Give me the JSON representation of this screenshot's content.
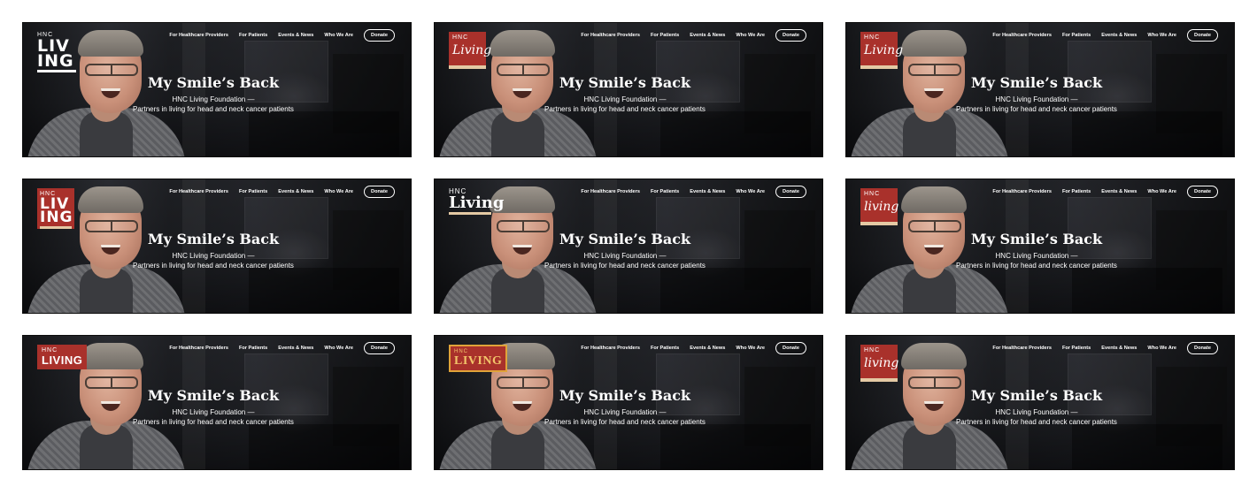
{
  "nav": {
    "links": [
      "For Healthcare Providers",
      "For Patients",
      "Events & News",
      "Who We Are"
    ],
    "donate_label": "Donate"
  },
  "hero": {
    "title": "My Smile’s Back",
    "subtitle_line1": "HNC Living Foundation —",
    "subtitle_line2": "Partners in living for head and neck cancer patients"
  },
  "logos": [
    {
      "variant": "stacked-white",
      "lines": [
        "HNC",
        "LIV",
        "ING"
      ]
    },
    {
      "variant": "script-red",
      "lines": [
        "HNC",
        "Living"
      ]
    },
    {
      "variant": "script-red",
      "lines": [
        "HNC",
        "Living"
      ]
    },
    {
      "variant": "stacked-red",
      "lines": [
        "HNC",
        "LIV",
        "ING"
      ]
    },
    {
      "variant": "serif-line",
      "lines": [
        "HNC",
        "Living"
      ]
    },
    {
      "variant": "script-red",
      "lines": [
        "HNC",
        "living"
      ]
    },
    {
      "variant": "boxed-red",
      "lines": [
        "HNC",
        "LIVING"
      ]
    },
    {
      "variant": "boxed-gold",
      "lines": [
        "HNC",
        "LIVING"
      ]
    },
    {
      "variant": "script-red",
      "lines": [
        "HNC",
        "living"
      ]
    }
  ],
  "colors": {
    "brand_red": "#a9312b",
    "brand_cream": "#e4c9a4",
    "brand_gold": "#e0a339",
    "text": "#ffffff"
  }
}
